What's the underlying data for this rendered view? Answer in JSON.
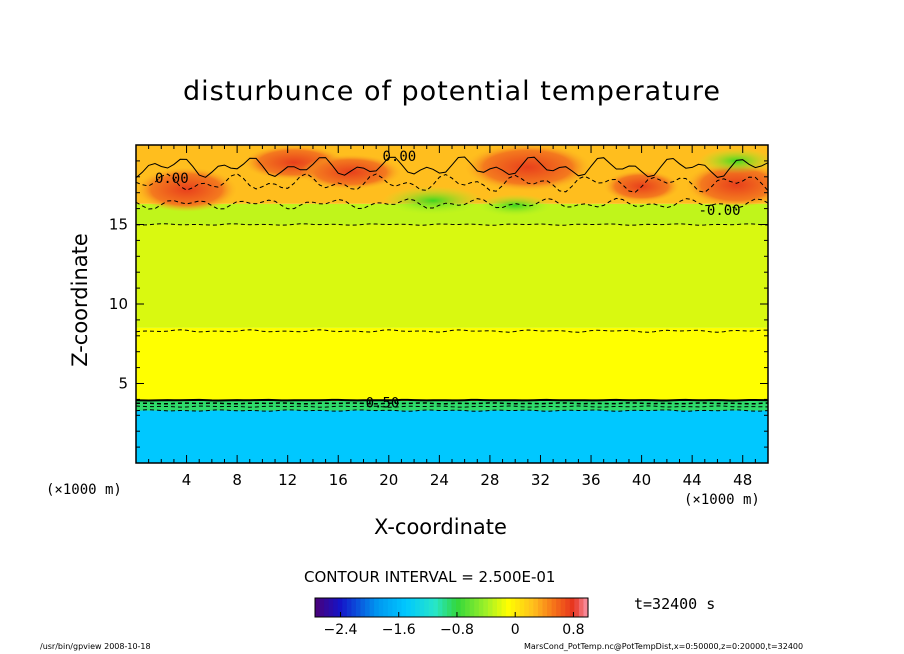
{
  "chart_data": {
    "type": "heatmap",
    "title": "disturbunce of potential temperature",
    "xlabel": "X-coordinate",
    "ylabel": "Z-coordinate",
    "x_unit_label": "(×1000 m)",
    "x_ticks": [
      4,
      8,
      12,
      16,
      20,
      24,
      28,
      32,
      36,
      40,
      44,
      48
    ],
    "y_ticks": [
      5,
      10,
      15
    ],
    "xlim": [
      0,
      50
    ],
    "ylim": [
      0,
      20
    ],
    "contour_interval_label": "CONTOUR INTERVAL = 2.500E-01",
    "contour_labels": [
      "0.00",
      "0.00",
      "-0.00",
      "-0.50"
    ],
    "colorbar": {
      "range": [
        -2.75,
        1.0
      ],
      "tick_values": [
        -2.4,
        -1.6,
        -0.8,
        0,
        0.8
      ],
      "tick_labels": [
        "−2.4",
        "−1.6",
        "−0.8",
        "0",
        "0.8"
      ]
    },
    "layers": [
      {
        "z_from": 0,
        "z_to": 3.3,
        "value": -1.5
      },
      {
        "z_from": 3.3,
        "z_to": 3.9,
        "value": -0.9
      },
      {
        "z_from": 3.9,
        "z_to": 8.5,
        "value": -0.1
      },
      {
        "z_from": 8.5,
        "z_to": 15.0,
        "value": -0.22
      },
      {
        "z_from": 15.0,
        "z_to": 16.3,
        "value": -0.3
      },
      {
        "z_from": 16.3,
        "z_to": 20,
        "value": 0.25
      }
    ],
    "time_label": "t=32400 s"
  },
  "footer": {
    "left": "/usr/bin/gpview   2008-10-18",
    "right": "MarsCond_PotTemp.nc@PotTempDist,x=0:50000,z=0:20000,t=32400"
  }
}
